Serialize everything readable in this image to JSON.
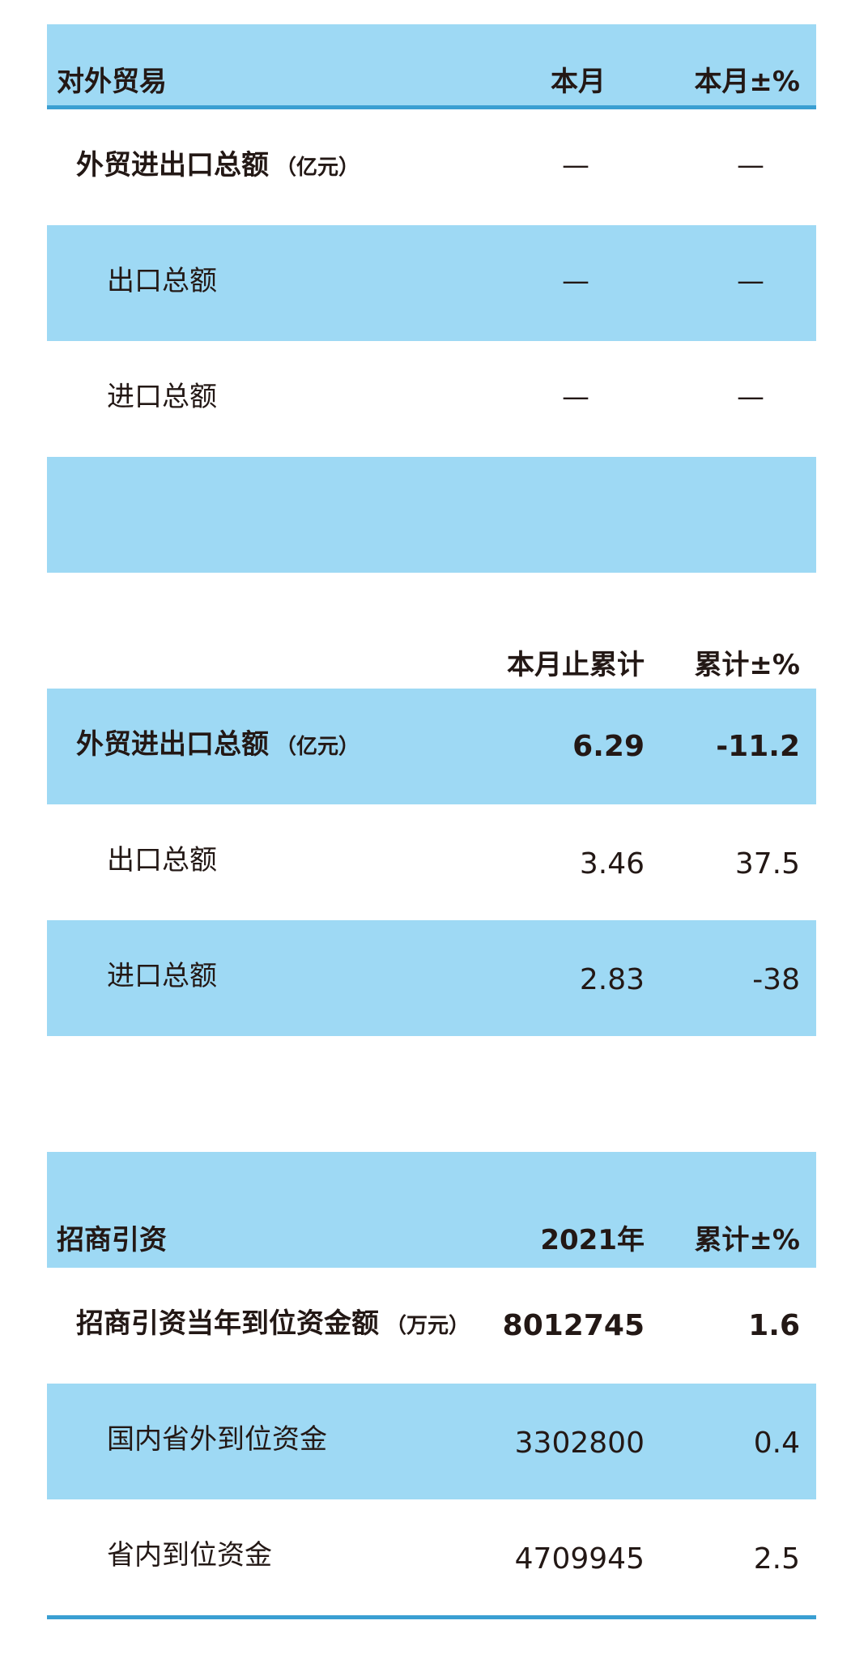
{
  "trade_monthly": {
    "header": {
      "title": "对外贸易",
      "col1": "本月",
      "col2": "本月±%"
    },
    "rows": [
      {
        "label": "外贸进出口总额",
        "unit": "（亿元）",
        "v1": "—",
        "v2": "—"
      },
      {
        "label": "出口总额",
        "v1": "—",
        "v2": "—"
      },
      {
        "label": "进口总额",
        "v1": "—",
        "v2": "—"
      }
    ]
  },
  "trade_cumulative": {
    "header": {
      "col1": "本月止累计",
      "col2": "累计±%"
    },
    "rows": [
      {
        "label": "外贸进出口总额",
        "unit": "（亿元）",
        "v1": "6.29",
        "v2": "-11.2"
      },
      {
        "label": "出口总额",
        "v1": "3.46",
        "v2": "37.5"
      },
      {
        "label": "进口总额",
        "v1": "2.83",
        "v2": "-38"
      }
    ]
  },
  "investment": {
    "header": {
      "title": "招商引资",
      "col1": "2021年",
      "col2": "累计±%"
    },
    "rows": [
      {
        "label": "招商引资当年到位资金额",
        "unit": "（万元）",
        "v1": "8012745",
        "v2": "1.6"
      },
      {
        "label": "国内省外到位资金",
        "v1": "3302800",
        "v2": "0.4"
      },
      {
        "label": "省内到位资金",
        "v1": "4709945",
        "v2": "2.5"
      }
    ]
  },
  "colors": {
    "band": "#9ed9f4",
    "rule": "#3a9fd2",
    "text": "#231815"
  }
}
